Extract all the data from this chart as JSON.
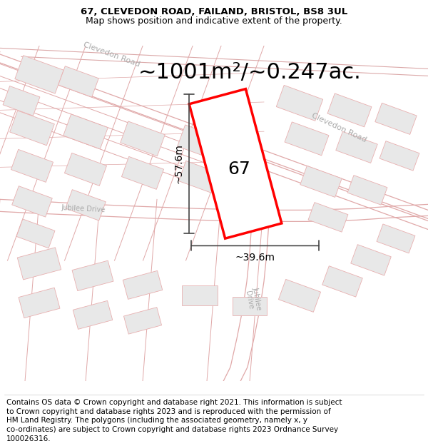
{
  "title_line1": "67, CLEVEDON ROAD, FAILAND, BRISTOL, BS8 3UL",
  "title_line2": "Map shows position and indicative extent of the property.",
  "area_text": "~1001m²/~0.247ac.",
  "label_67": "67",
  "dim_height": "~57.6m",
  "dim_width": "~39.6m",
  "road_label_topleft": "Clevedon Road",
  "road_label_topright": "Clevedon Road",
  "road_label_jubilee1": "Jubilee Drive",
  "road_label_jubilee2": "Jubilee\nDrive",
  "bg_color": "#ffffff",
  "building_fill": "#e8e8e8",
  "building_edge": "#c8a0a0",
  "parcel_edge": "#e8b0b0",
  "highlight_fill": "#ffffff",
  "highlight_edge": "#ff0000",
  "dim_line_color": "#444444",
  "road_text_color": "#aaaaaa",
  "title_fontsize": 9.5,
  "area_fontsize": 22,
  "label_fontsize": 18,
  "dim_fontsize": 10,
  "road_fontsize": 8,
  "footer_fontsize": 7.5,
  "footer_lines": [
    "Contains OS data © Crown copyright and database right 2021. This information is subject",
    "to Crown copyright and database rights 2023 and is reproduced with the permission of",
    "HM Land Registry. The polygons (including the associated geometry, namely x, y",
    "co-ordinates) are subject to Crown copyright and database rights 2023 Ordnance Survey",
    "100026316."
  ]
}
